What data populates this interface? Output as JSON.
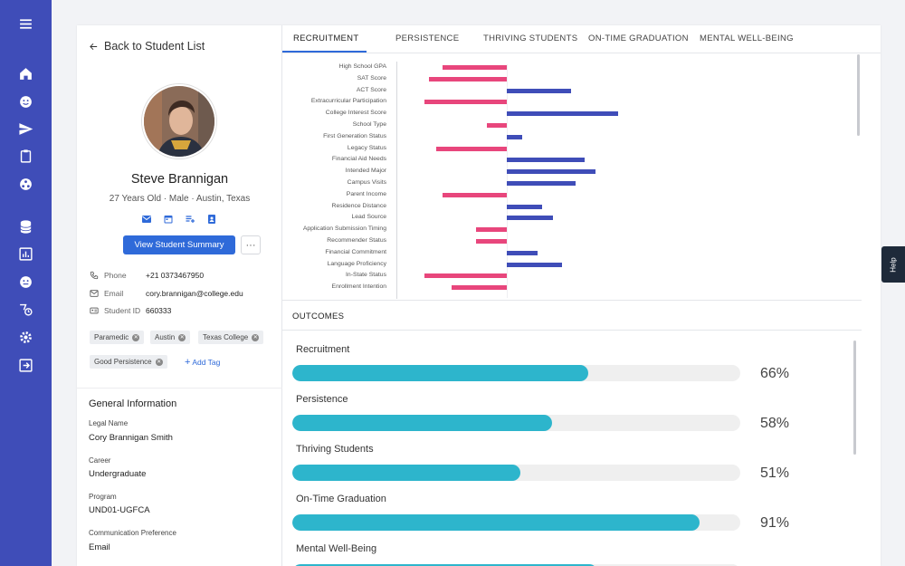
{
  "nav": {
    "icons": [
      "menu-icon",
      "home-icon",
      "smile-icon",
      "send-icon",
      "clipboard-icon",
      "network-icon",
      "database-icon",
      "bar-chart-icon",
      "face-icon",
      "route-icon",
      "settings-icon",
      "logout-icon"
    ]
  },
  "profile": {
    "back_label": "Back to Student List",
    "name": "Steve Brannigan",
    "meta": "27 Years Old · Male · Austin, Texas",
    "summary_button": "View Student Summary",
    "more_button": "···",
    "phone_label": "Phone",
    "phone": "+21 0373467950",
    "email_label": "Email",
    "email": "cory.brannigan@college.edu",
    "student_id_label": "Student ID",
    "student_id": "660333",
    "tags": [
      "Paramedic",
      "Austin",
      "Texas College",
      "Good Persistence"
    ],
    "add_tag": "Add Tag"
  },
  "general": {
    "title": "General Information",
    "fields": [
      {
        "label": "Legal Name",
        "value": "Cory Brannigan Smith"
      },
      {
        "label": "Career",
        "value": "Undergraduate"
      },
      {
        "label": "Program",
        "value": "UND01-UGFCA"
      },
      {
        "label": "Communication Preference",
        "value": "Email"
      }
    ]
  },
  "tabs": [
    "RECRUITMENT",
    "PERSISTENCE",
    "THRIVING STUDENTS",
    "ON-TIME GRADUATION",
    "MENTAL WELL-BEING"
  ],
  "colors": {
    "negative": "#e8467c",
    "positive": "#3f4db8",
    "progress": "#2db5cc",
    "accent": "#2f6ad9"
  },
  "chart_data": {
    "type": "bar",
    "orientation": "horizontal",
    "categories": [
      "High School GPA",
      "SAT Score",
      "ACT Score",
      "Extracurricular Participation",
      "College Interest Score",
      "School Type",
      "First Generation Status",
      "Legacy Status",
      "Financial Aid Needs",
      "Intended Major",
      "Campus Visits",
      "Parent Income",
      "Residence Distance",
      "Lead Source",
      "Application Submission Timing",
      "Recommender Status",
      "Financial Commitment",
      "Language Proficiency",
      "In-State Status",
      "Enrollment Intention"
    ],
    "values": [
      -0.29,
      -0.35,
      0.29,
      -0.37,
      0.5,
      -0.09,
      0.07,
      -0.32,
      0.35,
      0.4,
      0.31,
      -0.29,
      0.16,
      0.21,
      -0.14,
      -0.14,
      0.14,
      0.25,
      -0.37,
      -0.25
    ]
  },
  "outcomes": {
    "title": "OUTCOMES",
    "items": [
      {
        "label": "Recruitment",
        "pct": 66,
        "pct_label": "66%"
      },
      {
        "label": "Persistence",
        "pct": 58,
        "pct_label": "58%"
      },
      {
        "label": "Thriving Students",
        "pct": 51,
        "pct_label": "51%"
      },
      {
        "label": "On-Time Graduation",
        "pct": 91,
        "pct_label": "91%"
      },
      {
        "label": "Mental Well-Being",
        "pct": 68,
        "pct_label": ""
      }
    ]
  },
  "help_label": "Help"
}
